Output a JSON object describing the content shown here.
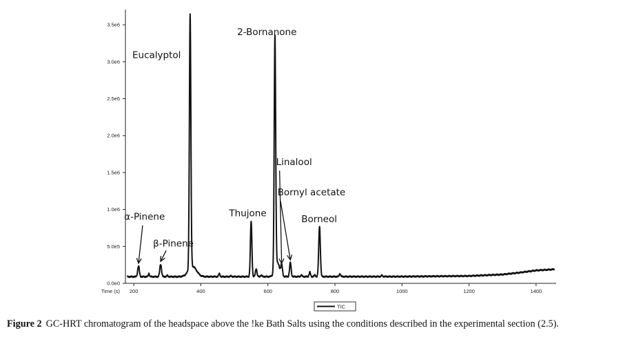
{
  "chart_data": {
    "type": "line",
    "title": "",
    "xlabel": "Time (s)",
    "ylabel": "",
    "xlim": [
      175,
      1460
    ],
    "ylim": [
      0,
      3650000
    ],
    "x_ticks": [
      {
        "value": 200,
        "label": "200"
      },
      {
        "value": 400,
        "label": "400"
      },
      {
        "value": 600,
        "label": "600"
      },
      {
        "value": 800,
        "label": "800"
      },
      {
        "value": 1000,
        "label": "1000"
      },
      {
        "value": 1200,
        "label": "1200"
      },
      {
        "value": 1400,
        "label": "1400"
      }
    ],
    "y_ticks": [
      {
        "value": 0,
        "label": "0.0e0"
      },
      {
        "value": 500000,
        "label": "5.0e5"
      },
      {
        "value": 1000000,
        "label": "1.0e6"
      },
      {
        "value": 1500000,
        "label": "1.5e6"
      },
      {
        "value": 2000000,
        "label": "2.0e6"
      },
      {
        "value": 2500000,
        "label": "2.5e6"
      },
      {
        "value": 3000000,
        "label": "3.0e6"
      },
      {
        "value": 3500000,
        "label": "3.5e6"
      }
    ],
    "grid": false,
    "legend": {
      "position": "bottom-center",
      "entries": [
        "TIC"
      ]
    },
    "series": [
      {
        "name": "TIC",
        "color": "#111111",
        "baseline": 90000,
        "peaks": [
          {
            "x": 214,
            "y": 235000,
            "w": 2.5
          },
          {
            "x": 245,
            "y": 135000,
            "w": 1.6
          },
          {
            "x": 280,
            "y": 260000,
            "w": 2.5
          },
          {
            "x": 300,
            "y": 105000,
            "w": 2.0
          },
          {
            "x": 368,
            "y": 3530000,
            "w": 2.2
          },
          {
            "x": 375,
            "y": 230000,
            "w": 12
          },
          {
            "x": 455,
            "y": 130000,
            "w": 2.0
          },
          {
            "x": 490,
            "y": 100000,
            "w": 2.0
          },
          {
            "x": 550,
            "y": 840000,
            "w": 2.2
          },
          {
            "x": 565,
            "y": 200000,
            "w": 2.2
          },
          {
            "x": 580,
            "y": 110000,
            "w": 2.0
          },
          {
            "x": 621,
            "y": 3240000,
            "w": 2.2
          },
          {
            "x": 628,
            "y": 280000,
            "w": 7
          },
          {
            "x": 641,
            "y": 230000,
            "w": 2.3
          },
          {
            "x": 667,
            "y": 280000,
            "w": 2.3
          },
          {
            "x": 700,
            "y": 110000,
            "w": 2.0
          },
          {
            "x": 725,
            "y": 150000,
            "w": 2.0
          },
          {
            "x": 740,
            "y": 110000,
            "w": 2.0
          },
          {
            "x": 754,
            "y": 770000,
            "w": 2.4
          },
          {
            "x": 815,
            "y": 130000,
            "w": 2.0
          },
          {
            "x": 940,
            "y": 105000,
            "w": 2.0
          }
        ],
        "drift": [
          {
            "x": 180,
            "y": 90000
          },
          {
            "x": 1000,
            "y": 92000
          },
          {
            "x": 1200,
            "y": 100000
          },
          {
            "x": 1300,
            "y": 120000
          },
          {
            "x": 1350,
            "y": 145000
          },
          {
            "x": 1400,
            "y": 175000
          },
          {
            "x": 1455,
            "y": 190000
          }
        ]
      }
    ],
    "annotations": [
      {
        "text": "α-Pinene",
        "x": 214,
        "y": 235000,
        "label_at": [
          232,
          860000
        ],
        "arrow": true
      },
      {
        "text": "β-Pinene",
        "x": 280,
        "y": 260000,
        "label_at": [
          318,
          500000
        ],
        "arrow": true
      },
      {
        "text": "Eucalyptol",
        "x": 368,
        "y": 3530000,
        "label_at": [
          268,
          3050000
        ],
        "arrow": false
      },
      {
        "text": "Thujone",
        "x": 550,
        "y": 840000,
        "label_at": [
          540,
          910000
        ],
        "arrow": false
      },
      {
        "text": "2-Bornanone",
        "x": 621,
        "y": 3240000,
        "label_at": [
          597,
          3360000
        ],
        "arrow": false
      },
      {
        "text": "Linalool",
        "x": 641,
        "y": 230000,
        "label_at": [
          678,
          1600000
        ],
        "arrow": true
      },
      {
        "text": "Bornyl acetate",
        "x": 667,
        "y": 280000,
        "label_at": [
          730,
          1190000
        ],
        "arrow": true
      },
      {
        "text": "Borneol",
        "x": 754,
        "y": 770000,
        "label_at": [
          753,
          830000
        ],
        "arrow": false
      }
    ]
  },
  "caption": {
    "label": "Figure 2",
    "text": "GC-HRT chromatogram of the headspace above the !ke Bath Salts using the conditions described in the experimental section (2.5)."
  }
}
